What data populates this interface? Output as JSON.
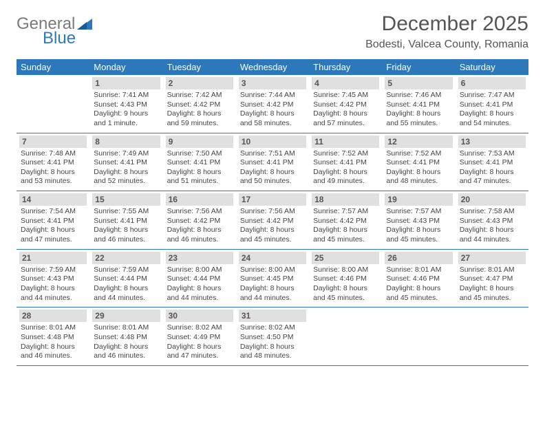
{
  "logo": {
    "word1": "General",
    "word2": "Blue"
  },
  "title": "December 2025",
  "location": "Bodesti, Valcea County, Romania",
  "day_headers": [
    "Sunday",
    "Monday",
    "Tuesday",
    "Wednesday",
    "Thursday",
    "Friday",
    "Saturday"
  ],
  "colors": {
    "header_bg": "#2d78bb",
    "header_text": "#ffffff",
    "daynum_bg": "#e0e0e0",
    "border": "#2d78bb",
    "logo_gray": "#7a7a7a",
    "logo_blue": "#2d78bb",
    "text": "#444444",
    "title_fontsize": 30,
    "location_fontsize": 16,
    "header_fontsize": 13,
    "daynum_fontsize": 12,
    "body_fontsize": 10.5
  },
  "weeks": [
    [
      null,
      {
        "n": "1",
        "sunrise": "7:41 AM",
        "sunset": "4:43 PM",
        "daylight": "9 hours and 1 minute."
      },
      {
        "n": "2",
        "sunrise": "7:42 AM",
        "sunset": "4:42 PM",
        "daylight": "8 hours and 59 minutes."
      },
      {
        "n": "3",
        "sunrise": "7:44 AM",
        "sunset": "4:42 PM",
        "daylight": "8 hours and 58 minutes."
      },
      {
        "n": "4",
        "sunrise": "7:45 AM",
        "sunset": "4:42 PM",
        "daylight": "8 hours and 57 minutes."
      },
      {
        "n": "5",
        "sunrise": "7:46 AM",
        "sunset": "4:41 PM",
        "daylight": "8 hours and 55 minutes."
      },
      {
        "n": "6",
        "sunrise": "7:47 AM",
        "sunset": "4:41 PM",
        "daylight": "8 hours and 54 minutes."
      }
    ],
    [
      {
        "n": "7",
        "sunrise": "7:48 AM",
        "sunset": "4:41 PM",
        "daylight": "8 hours and 53 minutes."
      },
      {
        "n": "8",
        "sunrise": "7:49 AM",
        "sunset": "4:41 PM",
        "daylight": "8 hours and 52 minutes."
      },
      {
        "n": "9",
        "sunrise": "7:50 AM",
        "sunset": "4:41 PM",
        "daylight": "8 hours and 51 minutes."
      },
      {
        "n": "10",
        "sunrise": "7:51 AM",
        "sunset": "4:41 PM",
        "daylight": "8 hours and 50 minutes."
      },
      {
        "n": "11",
        "sunrise": "7:52 AM",
        "sunset": "4:41 PM",
        "daylight": "8 hours and 49 minutes."
      },
      {
        "n": "12",
        "sunrise": "7:52 AM",
        "sunset": "4:41 PM",
        "daylight": "8 hours and 48 minutes."
      },
      {
        "n": "13",
        "sunrise": "7:53 AM",
        "sunset": "4:41 PM",
        "daylight": "8 hours and 47 minutes."
      }
    ],
    [
      {
        "n": "14",
        "sunrise": "7:54 AM",
        "sunset": "4:41 PM",
        "daylight": "8 hours and 47 minutes."
      },
      {
        "n": "15",
        "sunrise": "7:55 AM",
        "sunset": "4:41 PM",
        "daylight": "8 hours and 46 minutes."
      },
      {
        "n": "16",
        "sunrise": "7:56 AM",
        "sunset": "4:42 PM",
        "daylight": "8 hours and 46 minutes."
      },
      {
        "n": "17",
        "sunrise": "7:56 AM",
        "sunset": "4:42 PM",
        "daylight": "8 hours and 45 minutes."
      },
      {
        "n": "18",
        "sunrise": "7:57 AM",
        "sunset": "4:42 PM",
        "daylight": "8 hours and 45 minutes."
      },
      {
        "n": "19",
        "sunrise": "7:57 AM",
        "sunset": "4:43 PM",
        "daylight": "8 hours and 45 minutes."
      },
      {
        "n": "20",
        "sunrise": "7:58 AM",
        "sunset": "4:43 PM",
        "daylight": "8 hours and 44 minutes."
      }
    ],
    [
      {
        "n": "21",
        "sunrise": "7:59 AM",
        "sunset": "4:43 PM",
        "daylight": "8 hours and 44 minutes."
      },
      {
        "n": "22",
        "sunrise": "7:59 AM",
        "sunset": "4:44 PM",
        "daylight": "8 hours and 44 minutes."
      },
      {
        "n": "23",
        "sunrise": "8:00 AM",
        "sunset": "4:44 PM",
        "daylight": "8 hours and 44 minutes."
      },
      {
        "n": "24",
        "sunrise": "8:00 AM",
        "sunset": "4:45 PM",
        "daylight": "8 hours and 44 minutes."
      },
      {
        "n": "25",
        "sunrise": "8:00 AM",
        "sunset": "4:46 PM",
        "daylight": "8 hours and 45 minutes."
      },
      {
        "n": "26",
        "sunrise": "8:01 AM",
        "sunset": "4:46 PM",
        "daylight": "8 hours and 45 minutes."
      },
      {
        "n": "27",
        "sunrise": "8:01 AM",
        "sunset": "4:47 PM",
        "daylight": "8 hours and 45 minutes."
      }
    ],
    [
      {
        "n": "28",
        "sunrise": "8:01 AM",
        "sunset": "4:48 PM",
        "daylight": "8 hours and 46 minutes."
      },
      {
        "n": "29",
        "sunrise": "8:01 AM",
        "sunset": "4:48 PM",
        "daylight": "8 hours and 46 minutes."
      },
      {
        "n": "30",
        "sunrise": "8:02 AM",
        "sunset": "4:49 PM",
        "daylight": "8 hours and 47 minutes."
      },
      {
        "n": "31",
        "sunrise": "8:02 AM",
        "sunset": "4:50 PM",
        "daylight": "8 hours and 48 minutes."
      },
      null,
      null,
      null
    ]
  ]
}
